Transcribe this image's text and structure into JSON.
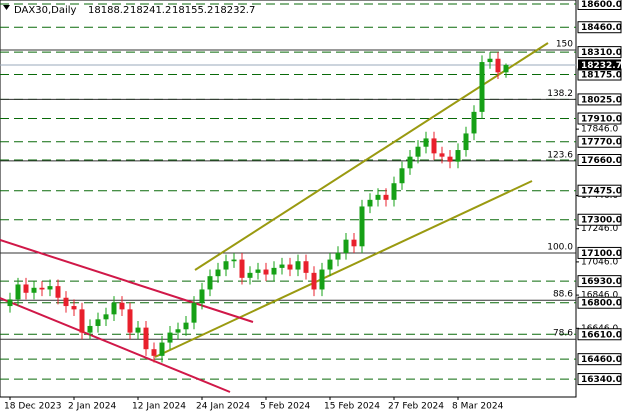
{
  "chart_data": {
    "type": "candlestick",
    "title": "DAX30,Daily",
    "categories": [
      "18 Dec 2023",
      null,
      null,
      null,
      null,
      null,
      null,
      null,
      "2 Jan 2024",
      null,
      null,
      null,
      null,
      null,
      null,
      null,
      "12 Jan 2024",
      null,
      null,
      null,
      null,
      null,
      null,
      null,
      "24 Jan 2024",
      null,
      null,
      null,
      null,
      null,
      null,
      null,
      "5 Feb 2024",
      null,
      null,
      null,
      null,
      null,
      null,
      null,
      "15 Feb 2024",
      null,
      null,
      null,
      null,
      null,
      null,
      null,
      "27 Feb 2024",
      null,
      null,
      null,
      null,
      null,
      null,
      null,
      "8 Mar 2024",
      null,
      null,
      null,
      null,
      null,
      null
    ],
    "open": [
      16780,
      16820,
      16910,
      16860,
      16890,
      16880,
      16900,
      16830,
      16780,
      16760,
      16620,
      16660,
      16700,
      16730,
      16800,
      16760,
      16620,
      16650,
      16520,
      16480,
      16560,
      16620,
      16640,
      16680,
      16800,
      16880,
      16960,
      17000,
      17050,
      17060,
      16950,
      16980,
      17000,
      16970,
      17010,
      17030,
      17000,
      17050,
      16980,
      16880,
      17000,
      17060,
      17100,
      17180,
      17140,
      17380,
      17420,
      17450,
      17420,
      17520,
      17610,
      17680,
      17740,
      17790,
      17700,
      17680,
      17650,
      17720,
      17820,
      17950,
      18250,
      18270,
      18188.2
    ],
    "high": [
      16860,
      16950,
      16950,
      16930,
      16930,
      16940,
      16940,
      16870,
      16820,
      16800,
      16700,
      16740,
      16770,
      16840,
      16840,
      16800,
      16690,
      16690,
      16560,
      16600,
      16660,
      16680,
      16720,
      16840,
      16920,
      17000,
      17040,
      17090,
      17100,
      17100,
      17020,
      17040,
      17040,
      17050,
      17070,
      17070,
      17090,
      17090,
      17020,
      17040,
      17100,
      17140,
      17220,
      17220,
      17420,
      17460,
      17490,
      17490,
      17560,
      17650,
      17720,
      17780,
      17830,
      17830,
      17740,
      17720,
      17760,
      17860,
      17990,
      18290,
      18310,
      18310,
      18241.2
    ],
    "low": [
      16740,
      16780,
      16820,
      16820,
      16840,
      16840,
      16790,
      16740,
      16720,
      16580,
      16580,
      16620,
      16660,
      16690,
      16720,
      16580,
      16580,
      16480,
      16440,
      16440,
      16520,
      16580,
      16600,
      16640,
      16760,
      16840,
      16920,
      16960,
      17010,
      16910,
      16910,
      16940,
      16930,
      16930,
      16970,
      16960,
      16960,
      16940,
      16840,
      16840,
      16960,
      17020,
      17060,
      17100,
      17100,
      17340,
      17380,
      17380,
      17380,
      17480,
      17570,
      17640,
      17700,
      17660,
      17640,
      17610,
      17610,
      17680,
      17780,
      17910,
      18210,
      18148.2,
      18155.2
    ],
    "close": [
      16820,
      16910,
      16860,
      16890,
      16880,
      16900,
      16830,
      16780,
      16760,
      16620,
      16660,
      16700,
      16730,
      16800,
      16760,
      16620,
      16650,
      16520,
      16480,
      16560,
      16620,
      16640,
      16680,
      16800,
      16880,
      16960,
      17000,
      17050,
      17060,
      16950,
      16980,
      17000,
      16970,
      17010,
      17030,
      17000,
      17050,
      16980,
      16880,
      17000,
      17060,
      17100,
      17180,
      17140,
      17380,
      17420,
      17450,
      17420,
      17520,
      17610,
      17680,
      17740,
      17790,
      17700,
      17680,
      17650,
      17720,
      17820,
      17950,
      18250,
      18270,
      18188.2,
      18232.7
    ],
    "up_color": "#16a016",
    "down_color": "#e8202c",
    "ylim": [
      16232,
      18624
    ],
    "yticks": [
      {
        "value": 17846,
        "label": "17846.0"
      },
      {
        "value": 17446,
        "label": "17446.0"
      },
      {
        "value": 17246,
        "label": "17246.0"
      },
      {
        "value": 17046,
        "label": "17046.0"
      },
      {
        "value": 16846,
        "label": "16846.0"
      },
      {
        "value": 16646,
        "label": "16646.0"
      }
    ],
    "levels": [
      {
        "value": 18600,
        "label": "18600.0"
      },
      {
        "value": 18460,
        "label": "18460.0"
      },
      {
        "value": 18310,
        "label": "18310.0"
      },
      {
        "value": 18175,
        "label": "18175.0"
      },
      {
        "value": 18025,
        "label": "18025.0"
      },
      {
        "value": 17910,
        "label": "17910.0"
      },
      {
        "value": 17770,
        "label": "17770.0"
      },
      {
        "value": 17660,
        "label": "17660.0"
      },
      {
        "value": 17475,
        "label": "17475.0"
      },
      {
        "value": 17300,
        "label": "17300.0"
      },
      {
        "value": 17100,
        "label": "17100.0"
      },
      {
        "value": 16930,
        "label": "16930.0"
      },
      {
        "value": 16800,
        "label": "16800.0"
      },
      {
        "value": 16610,
        "label": "16610.0"
      },
      {
        "value": 16460,
        "label": "16460.0"
      },
      {
        "value": 16340,
        "label": "16340.0"
      }
    ],
    "level_color": "#0a6a0a",
    "fib_levels": [
      {
        "level": "150",
        "price": 18323
      },
      {
        "level": "138.2",
        "price": 18025
      },
      {
        "level": "123.6",
        "price": 17655
      },
      {
        "level": "100.0",
        "price": 17100
      },
      {
        "level": "88.6",
        "price": 16815
      },
      {
        "level": "78.6",
        "price": 16580
      }
    ]
  }
}
